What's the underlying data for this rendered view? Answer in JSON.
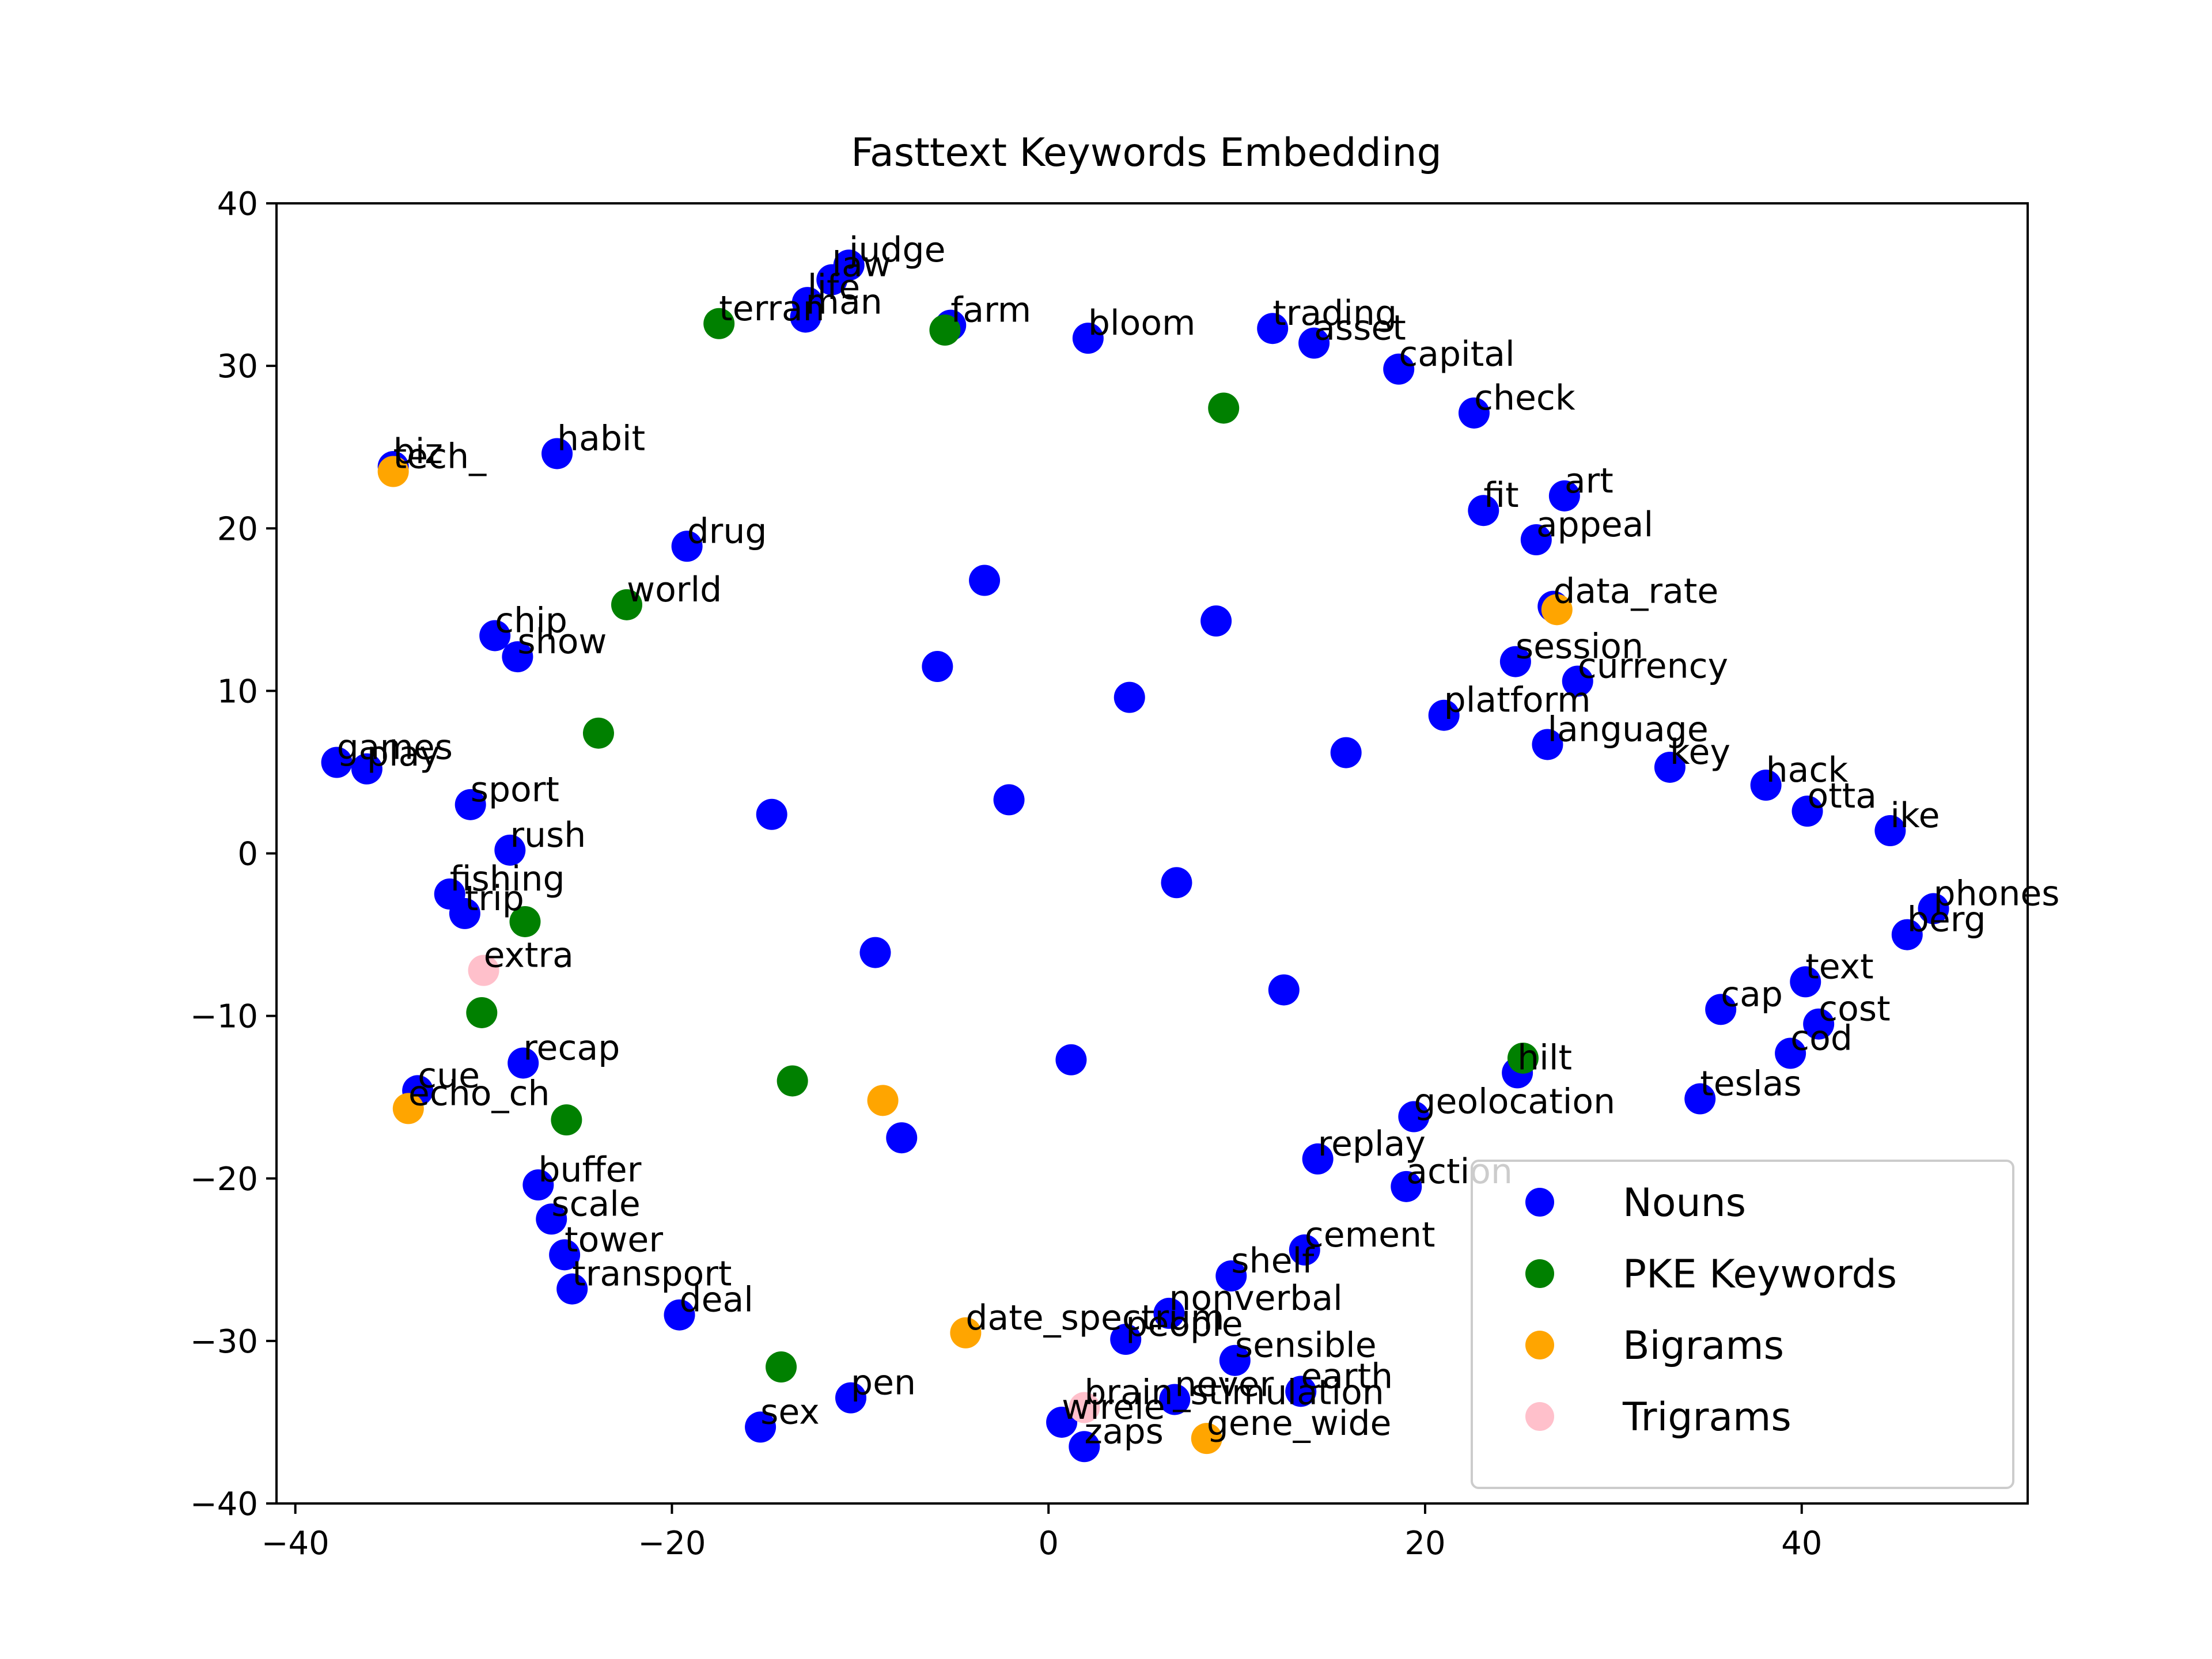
{
  "chart_data": {
    "type": "scatter",
    "title": "Fasttext Keywords Embedding",
    "xlabel": "",
    "ylabel": "",
    "xlim": [
      -41,
      52
    ],
    "ylim": [
      -40,
      40
    ],
    "xticks": [
      -40,
      -20,
      0,
      20,
      40
    ],
    "yticks": [
      40,
      30,
      20,
      10,
      0,
      -10,
      -20,
      -30,
      -40
    ],
    "grid": false,
    "legend_position": "lower-right",
    "series": [
      {
        "name": "Nouns",
        "color": "#0000ff",
        "points": [
          {
            "x": -10.6,
            "y": 36.2,
            "label": "judge"
          },
          {
            "x": -11.5,
            "y": 35.3,
            "label": "law"
          },
          {
            "x": -12.8,
            "y": 33.9,
            "label": "life"
          },
          {
            "x": -12.9,
            "y": 33.0,
            "label": "man"
          },
          {
            "x": -5.2,
            "y": 32.5,
            "label": "farm"
          },
          {
            "x": 2.1,
            "y": 31.7,
            "label": "bloom"
          },
          {
            "x": 11.9,
            "y": 32.3,
            "label": "trading"
          },
          {
            "x": 14.1,
            "y": 31.4,
            "label": "asset"
          },
          {
            "x": 18.6,
            "y": 29.8,
            "label": "capital"
          },
          {
            "x": 22.6,
            "y": 27.1,
            "label": "check"
          },
          {
            "x": -34.8,
            "y": 23.8,
            "label": "biz"
          },
          {
            "x": -26.1,
            "y": 24.6,
            "label": "habit"
          },
          {
            "x": 27.4,
            "y": 22.0,
            "label": "art"
          },
          {
            "x": 23.1,
            "y": 21.1,
            "label": "fit"
          },
          {
            "x": 25.9,
            "y": 19.3,
            "label": "appeal"
          },
          {
            "x": -19.2,
            "y": 18.9,
            "label": "drug"
          },
          {
            "x": 26.8,
            "y": 15.2,
            "label": "data_rate"
          },
          {
            "x": -29.4,
            "y": 13.4,
            "label": "chip"
          },
          {
            "x": -28.2,
            "y": 12.1,
            "label": "show"
          },
          {
            "x": 24.8,
            "y": 11.8,
            "label": "session"
          },
          {
            "x": 28.1,
            "y": 10.6,
            "label": "currency"
          },
          {
            "x": 21.0,
            "y": 8.5,
            "label": "platform"
          },
          {
            "x": -37.8,
            "y": 5.6,
            "label": "games"
          },
          {
            "x": -36.2,
            "y": 5.2,
            "label": "play"
          },
          {
            "x": 26.5,
            "y": 6.7,
            "label": "language"
          },
          {
            "x": 33.0,
            "y": 5.3,
            "label": "key"
          },
          {
            "x": 38.1,
            "y": 4.2,
            "label": "hack"
          },
          {
            "x": -30.7,
            "y": 3.0,
            "label": "sport"
          },
          {
            "x": 40.3,
            "y": 2.6,
            "label": "otta"
          },
          {
            "x": 44.7,
            "y": 1.4,
            "label": "ike"
          },
          {
            "x": -28.6,
            "y": 0.2,
            "label": "rush"
          },
          {
            "x": -31.8,
            "y": -2.5,
            "label": "fishing"
          },
          {
            "x": -31.0,
            "y": -3.7,
            "label": "trip"
          },
          {
            "x": 47.0,
            "y": -3.4,
            "label": "phones"
          },
          {
            "x": 45.6,
            "y": -5.0,
            "label": "berg"
          },
          {
            "x": 40.2,
            "y": -7.9,
            "label": "text"
          },
          {
            "x": 35.7,
            "y": -9.6,
            "label": "cap"
          },
          {
            "x": 40.9,
            "y": -10.5,
            "label": "cost"
          },
          {
            "x": 39.4,
            "y": -12.3,
            "label": "cod"
          },
          {
            "x": -27.9,
            "y": -12.9,
            "label": "recap"
          },
          {
            "x": -33.5,
            "y": -14.6,
            "label": "cue"
          },
          {
            "x": 34.6,
            "y": -15.1,
            "label": "teslas"
          },
          {
            "x": 24.9,
            "y": -13.5,
            "label": "hilt"
          },
          {
            "x": 19.4,
            "y": -16.2,
            "label": "geolocation"
          },
          {
            "x": 14.3,
            "y": -18.8,
            "label": "replay"
          },
          {
            "x": 19.0,
            "y": -20.5,
            "label": "action"
          },
          {
            "x": -27.1,
            "y": -20.4,
            "label": "buffer"
          },
          {
            "x": -26.4,
            "y": -22.5,
            "label": "scale"
          },
          {
            "x": -25.7,
            "y": -24.7,
            "label": "tower"
          },
          {
            "x": -25.3,
            "y": -26.8,
            "label": "transport"
          },
          {
            "x": -19.6,
            "y": -28.4,
            "label": "deal"
          },
          {
            "x": 9.7,
            "y": -26.0,
            "label": "shelf"
          },
          {
            "x": 13.6,
            "y": -24.4,
            "label": "cement"
          },
          {
            "x": 6.4,
            "y": -28.3,
            "label": "nonverbal"
          },
          {
            "x": 4.1,
            "y": -29.9,
            "label": "people"
          },
          {
            "x": 9.9,
            "y": -31.2,
            "label": "sensible"
          },
          {
            "x": 6.7,
            "y": -33.6,
            "label": "never"
          },
          {
            "x": 13.4,
            "y": -33.1,
            "label": "earth"
          },
          {
            "x": -15.3,
            "y": -35.3,
            "label": "sex"
          },
          {
            "x": -10.5,
            "y": -33.5,
            "label": "pen"
          },
          {
            "x": 1.9,
            "y": -36.5,
            "label": "zaps"
          },
          {
            "x": 0.7,
            "y": -35.0,
            "label": "wirele"
          },
          {
            "x": -5.9,
            "y": 11.5,
            "label": ""
          },
          {
            "x": 4.3,
            "y": 9.6,
            "label": ""
          },
          {
            "x": -2.1,
            "y": 3.3,
            "label": ""
          },
          {
            "x": 6.8,
            "y": -1.8,
            "label": ""
          },
          {
            "x": -9.2,
            "y": -6.1,
            "label": ""
          },
          {
            "x": 12.5,
            "y": -8.4,
            "label": ""
          },
          {
            "x": -3.4,
            "y": 16.8,
            "label": ""
          },
          {
            "x": 15.8,
            "y": 6.2,
            "label": ""
          },
          {
            "x": -14.7,
            "y": 2.4,
            "label": ""
          },
          {
            "x": 1.2,
            "y": -12.7,
            "label": ""
          },
          {
            "x": 8.9,
            "y": 14.3,
            "label": ""
          },
          {
            "x": -7.8,
            "y": -17.5,
            "label": ""
          }
        ]
      },
      {
        "name": "PKE Keywords",
        "color": "#008000",
        "points": [
          {
            "x": -17.5,
            "y": 32.6,
            "label": "terran"
          },
          {
            "x": -5.5,
            "y": 32.2,
            "label": ""
          },
          {
            "x": 9.3,
            "y": 27.4,
            "label": ""
          },
          {
            "x": -22.4,
            "y": 15.3,
            "label": "world"
          },
          {
            "x": -23.9,
            "y": 7.4,
            "label": ""
          },
          {
            "x": -27.8,
            "y": -4.2,
            "label": ""
          },
          {
            "x": -30.1,
            "y": -9.8,
            "label": ""
          },
          {
            "x": -25.6,
            "y": -16.4,
            "label": ""
          },
          {
            "x": -14.2,
            "y": -31.6,
            "label": ""
          },
          {
            "x": 25.2,
            "y": -12.6,
            "label": ""
          },
          {
            "x": -13.6,
            "y": -14.0,
            "label": ""
          }
        ]
      },
      {
        "name": "Bigrams",
        "color": "#ffa500",
        "points": [
          {
            "x": -34.8,
            "y": 23.5,
            "label": "tech_"
          },
          {
            "x": -34.0,
            "y": -15.7,
            "label": "echo_ch"
          },
          {
            "x": 8.4,
            "y": -36.0,
            "label": "gene_wide"
          },
          {
            "x": -4.4,
            "y": -29.5,
            "label": "date_spectrum"
          },
          {
            "x": 27.0,
            "y": 15.0,
            "label": ""
          },
          {
            "x": -8.8,
            "y": -15.2,
            "label": ""
          }
        ]
      },
      {
        "name": "Trigrams",
        "color": "#ffc0cb",
        "points": [
          {
            "x": -30.0,
            "y": -7.2,
            "label": "extra"
          },
          {
            "x": 1.9,
            "y": -34.1,
            "label": "brain_stimulation"
          }
        ]
      }
    ]
  }
}
